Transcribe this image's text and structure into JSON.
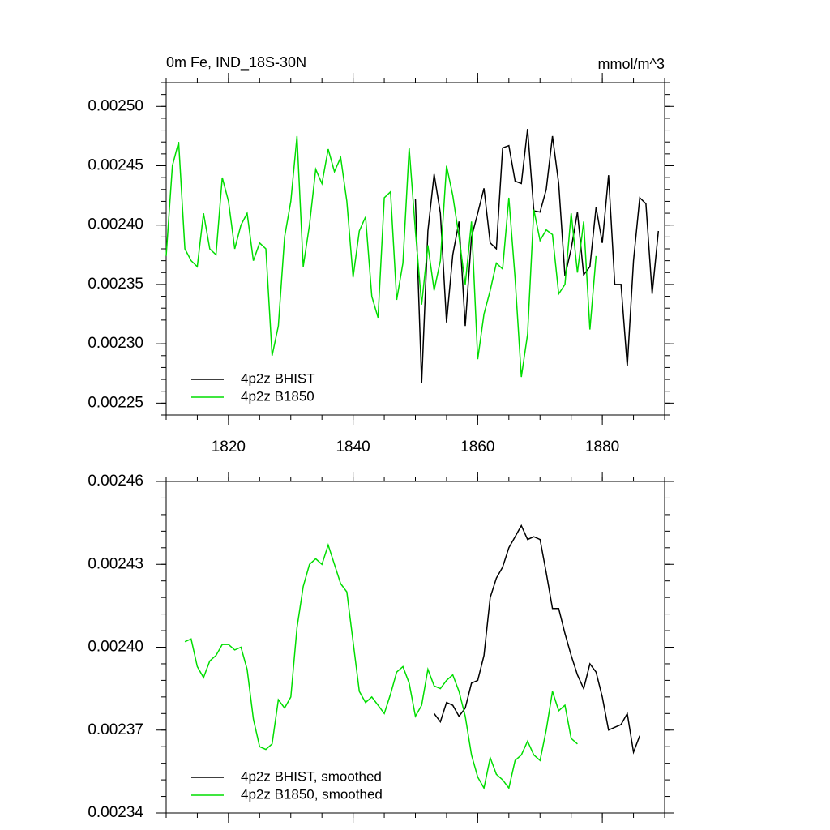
{
  "chart_data": [
    {
      "type": "line",
      "title": "0m Fe, IND_18S-30N",
      "units": "mmol/m^3",
      "xlim": [
        1810,
        1890
      ],
      "xticks": [
        1820,
        1840,
        1860,
        1880
      ],
      "ylim": [
        0.00224,
        0.00252
      ],
      "yticks": [
        {
          "value": 0.00225,
          "label": "0.00225"
        },
        {
          "value": 0.0023,
          "label": "0.00230"
        },
        0.00235,
        {
          "value": 0.0024,
          "label": "0.00240"
        },
        0.00245,
        {
          "value": 0.0025,
          "label": "0.00250"
        }
      ],
      "legend": "lower left",
      "series": [
        {
          "name": "4p2z BHIST",
          "color": "#000000",
          "x": [
            1850,
            1851,
            1852,
            1853,
            1854,
            1855,
            1856,
            1857,
            1858,
            1859,
            1860,
            1861,
            1862,
            1863,
            1864,
            1865,
            1866,
            1867,
            1868,
            1869,
            1870,
            1871,
            1872,
            1873,
            1874,
            1875,
            1876,
            1877,
            1878,
            1879,
            1880,
            1881,
            1882,
            1883,
            1884,
            1885,
            1886,
            1887,
            1888,
            1889
          ],
          "values": [
            0.002422,
            0.002267,
            0.002395,
            0.002443,
            0.00241,
            0.002318,
            0.002375,
            0.002403,
            0.002315,
            0.00239,
            0.00241,
            0.002431,
            0.002385,
            0.00238,
            0.002465,
            0.002467,
            0.002437,
            0.002435,
            0.002481,
            0.002412,
            0.002411,
            0.00243,
            0.002475,
            0.002435,
            0.002357,
            0.00238,
            0.002411,
            0.002358,
            0.002365,
            0.002415,
            0.002385,
            0.002442,
            0.00235,
            0.00235,
            0.002281,
            0.00237,
            0.002423,
            0.002418,
            0.002342,
            0.002395
          ]
        },
        {
          "name": "4p2z B1850",
          "color": "#00dd00",
          "x": [
            1810,
            1811,
            1812,
            1813,
            1814,
            1815,
            1816,
            1817,
            1818,
            1819,
            1820,
            1821,
            1822,
            1823,
            1824,
            1825,
            1826,
            1827,
            1828,
            1829,
            1830,
            1831,
            1832,
            1833,
            1834,
            1835,
            1836,
            1837,
            1838,
            1839,
            1840,
            1841,
            1842,
            1843,
            1844,
            1845,
            1846,
            1847,
            1848,
            1849,
            1850,
            1851,
            1852,
            1853,
            1854,
            1855,
            1856,
            1857,
            1858,
            1859,
            1860,
            1861,
            1862,
            1863,
            1864,
            1865,
            1866,
            1867,
            1868,
            1869,
            1870,
            1871,
            1872,
            1873,
            1874,
            1875,
            1876,
            1877,
            1878,
            1879
          ],
          "values": [
            0.002374,
            0.00245,
            0.00247,
            0.00238,
            0.00237,
            0.002365,
            0.00241,
            0.00238,
            0.002375,
            0.00244,
            0.00242,
            0.00238,
            0.0024,
            0.00241,
            0.00237,
            0.002385,
            0.00238,
            0.00229,
            0.002315,
            0.00239,
            0.00242,
            0.002475,
            0.002365,
            0.0024,
            0.002447,
            0.002435,
            0.002464,
            0.002445,
            0.002457,
            0.00242,
            0.002356,
            0.002395,
            0.002407,
            0.00234,
            0.002322,
            0.002423,
            0.002428,
            0.002337,
            0.002368,
            0.002465,
            0.002395,
            0.002333,
            0.002383,
            0.002345,
            0.00237,
            0.00245,
            0.002425,
            0.00239,
            0.00235,
            0.002403,
            0.002287,
            0.002325,
            0.002345,
            0.002368,
            0.002363,
            0.002423,
            0.002355,
            0.002272,
            0.002308,
            0.002413,
            0.002387,
            0.002396,
            0.002392,
            0.002342,
            0.00235,
            0.00241,
            0.00236,
            0.002403,
            0.002312,
            0.002374
          ]
        }
      ]
    },
    {
      "type": "line",
      "xlim": [
        1810,
        1890
      ],
      "xticks": [
        1820,
        1840,
        1860,
        1880
      ],
      "ylim": [
        0.00234,
        0.00246
      ],
      "yticks": [
        0.00234,
        0.00237,
        {
          "value": 0.0024,
          "label": "0.00240"
        },
        0.00243,
        0.00246
      ],
      "legend": "lower left",
      "series": [
        {
          "name": "4p2z BHIST, smoothed",
          "color": "#000000",
          "x": [
            1853,
            1854,
            1855,
            1856,
            1857,
            1858,
            1859,
            1860,
            1861,
            1862,
            1863,
            1864,
            1865,
            1866,
            1867,
            1868,
            1869,
            1870,
            1871,
            1872,
            1873,
            1874,
            1875,
            1876,
            1877,
            1878,
            1879,
            1880,
            1881,
            1882,
            1883,
            1884,
            1885,
            1886
          ],
          "values": [
            0.002376,
            0.002373,
            0.00238,
            0.002379,
            0.002375,
            0.002378,
            0.002387,
            0.002388,
            0.002397,
            0.002418,
            0.002425,
            0.002429,
            0.002436,
            0.00244,
            0.002444,
            0.002439,
            0.00244,
            0.002439,
            0.002427,
            0.002414,
            0.002414,
            0.002405,
            0.002397,
            0.00239,
            0.002385,
            0.002394,
            0.002391,
            0.002382,
            0.00237,
            0.002371,
            0.002372,
            0.002376,
            0.002362,
            0.002368
          ]
        },
        {
          "name": "4p2z B1850, smoothed",
          "color": "#00dd00",
          "x": [
            1813,
            1814,
            1815,
            1816,
            1817,
            1818,
            1819,
            1820,
            1821,
            1822,
            1823,
            1824,
            1825,
            1826,
            1827,
            1828,
            1829,
            1830,
            1831,
            1832,
            1833,
            1834,
            1835,
            1836,
            1837,
            1838,
            1839,
            1840,
            1841,
            1842,
            1843,
            1844,
            1845,
            1846,
            1847,
            1848,
            1849,
            1850,
            1851,
            1852,
            1853,
            1854,
            1855,
            1856,
            1857,
            1858,
            1859,
            1860,
            1861,
            1862,
            1863,
            1864,
            1865,
            1866,
            1867,
            1868,
            1869,
            1870,
            1871,
            1872,
            1873,
            1874,
            1875,
            1876
          ],
          "values": [
            0.002402,
            0.002403,
            0.002393,
            0.002389,
            0.002395,
            0.002397,
            0.002401,
            0.002401,
            0.002399,
            0.0024,
            0.002392,
            0.002374,
            0.002364,
            0.002363,
            0.002365,
            0.002381,
            0.002378,
            0.002382,
            0.002407,
            0.002422,
            0.00243,
            0.002432,
            0.00243,
            0.002437,
            0.00243,
            0.002423,
            0.00242,
            0.002402,
            0.002384,
            0.00238,
            0.002382,
            0.002379,
            0.002376,
            0.002383,
            0.002391,
            0.002393,
            0.002387,
            0.002375,
            0.002379,
            0.002392,
            0.002386,
            0.002385,
            0.002388,
            0.00239,
            0.002384,
            0.002375,
            0.002361,
            0.002353,
            0.002349,
            0.00236,
            0.002354,
            0.002352,
            0.002349,
            0.002359,
            0.002361,
            0.002366,
            0.002361,
            0.002359,
            0.00237,
            0.002384,
            0.002377,
            0.002379,
            0.002367,
            0.002365
          ]
        }
      ]
    }
  ]
}
